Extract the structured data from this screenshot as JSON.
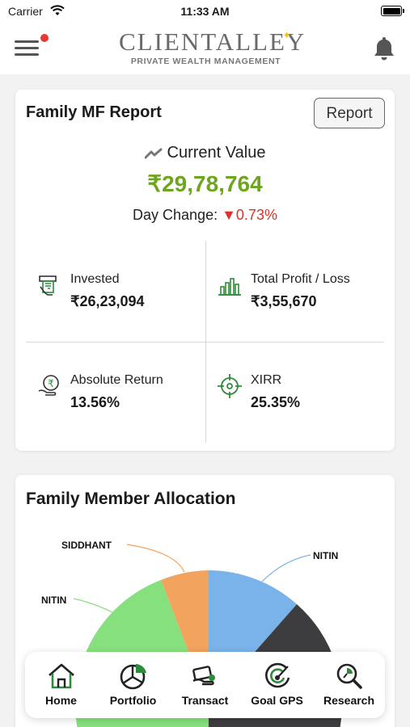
{
  "status_bar": {
    "carrier": "Carrier",
    "time": "11:33 AM"
  },
  "header": {
    "logo_main": "CLIENTALLEY",
    "logo_sub": "PRIVATE WEALTH MANAGEMENT"
  },
  "report_card": {
    "title": "Family MF Report",
    "report_button": "Report",
    "current_value_label": "Current Value",
    "current_value": "₹29,78,764",
    "day_change_label": "Day Change:",
    "day_change_value": "▼0.73%",
    "stats": [
      {
        "label": "Invested",
        "value": "₹26,23,094",
        "icon": "invested-icon"
      },
      {
        "label": "Total Profit / Loss",
        "value": "₹3,55,670",
        "icon": "bar-chart-icon"
      },
      {
        "label": "Absolute Return",
        "value": "13.56%",
        "icon": "rupee-hand-icon"
      },
      {
        "label": "XIRR",
        "value": "25.35%",
        "icon": "target-icon"
      }
    ]
  },
  "allocation": {
    "title": "Family Member Allocation",
    "chart_data": {
      "type": "pie",
      "categories": [
        "NITIN",
        "NITIN",
        "SIDDHANT"
      ],
      "colors": [
        "#7ab3ea",
        "#3d3d3f",
        "#86e07e",
        "#f2a35e"
      ]
    },
    "labels": {
      "siddhant": "SIDDHANT",
      "nitin_left": "NITIN",
      "nitin_right": "NITIN"
    }
  },
  "bottom_nav": [
    {
      "label": "Home",
      "icon": "home-icon"
    },
    {
      "label": "Portfolio",
      "icon": "portfolio-icon"
    },
    {
      "label": "Transact",
      "icon": "transact-icon"
    },
    {
      "label": "Goal GPS",
      "icon": "goal-gps-icon"
    },
    {
      "label": "Research",
      "icon": "research-icon"
    }
  ],
  "colors": {
    "accent_green": "#6ea51e",
    "negative_red": "#d9342b",
    "icon_green": "#2e8b3a"
  }
}
